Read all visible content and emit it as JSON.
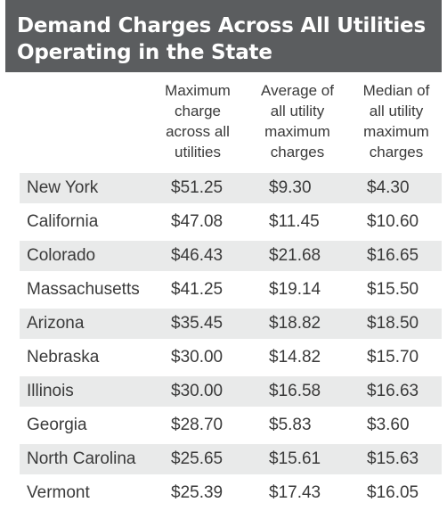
{
  "title": {
    "line1": "Demand Charges Across All Utilities",
    "line2": "Operating in the State"
  },
  "columns": [
    {
      "lines": [
        "Maximum",
        "charge",
        "across all",
        "utilities"
      ]
    },
    {
      "lines": [
        "Average of",
        "all utility",
        "maximum",
        "charges"
      ]
    },
    {
      "lines": [
        "Median of",
        "all utility",
        "maximum",
        "charges"
      ]
    }
  ],
  "rows": [
    {
      "state": "New York",
      "max": "$51.25",
      "avg": "$9.30",
      "median": "$4.30"
    },
    {
      "state": "California",
      "max": "$47.08",
      "avg": "$11.45",
      "median": "$10.60"
    },
    {
      "state": "Colorado",
      "max": "$46.43",
      "avg": "$21.68",
      "median": "$16.65"
    },
    {
      "state": "Massachusetts",
      "max": "$41.25",
      "avg": "$19.14",
      "median": "$15.50"
    },
    {
      "state": "Arizona",
      "max": "$35.45",
      "avg": "$18.82",
      "median": "$18.50"
    },
    {
      "state": "Nebraska",
      "max": "$30.00",
      "avg": "$14.82",
      "median": "$15.70"
    },
    {
      "state": "Illinois",
      "max": "$30.00",
      "avg": "$16.58",
      "median": "$16.63"
    },
    {
      "state": "Georgia",
      "max": "$28.70",
      "avg": "$5.83",
      "median": "$3.60"
    },
    {
      "state": "North Carolina",
      "max": "$25.65",
      "avg": "$15.61",
      "median": "$15.63"
    },
    {
      "state": "Vermont",
      "max": "$25.39",
      "avg": "$17.43",
      "median": "$16.05"
    }
  ],
  "colors": {
    "title_background": "#5b5d5f",
    "title_text": "#ffffff",
    "row_shade": "#e9eaea",
    "text": "#3a3a3a"
  }
}
